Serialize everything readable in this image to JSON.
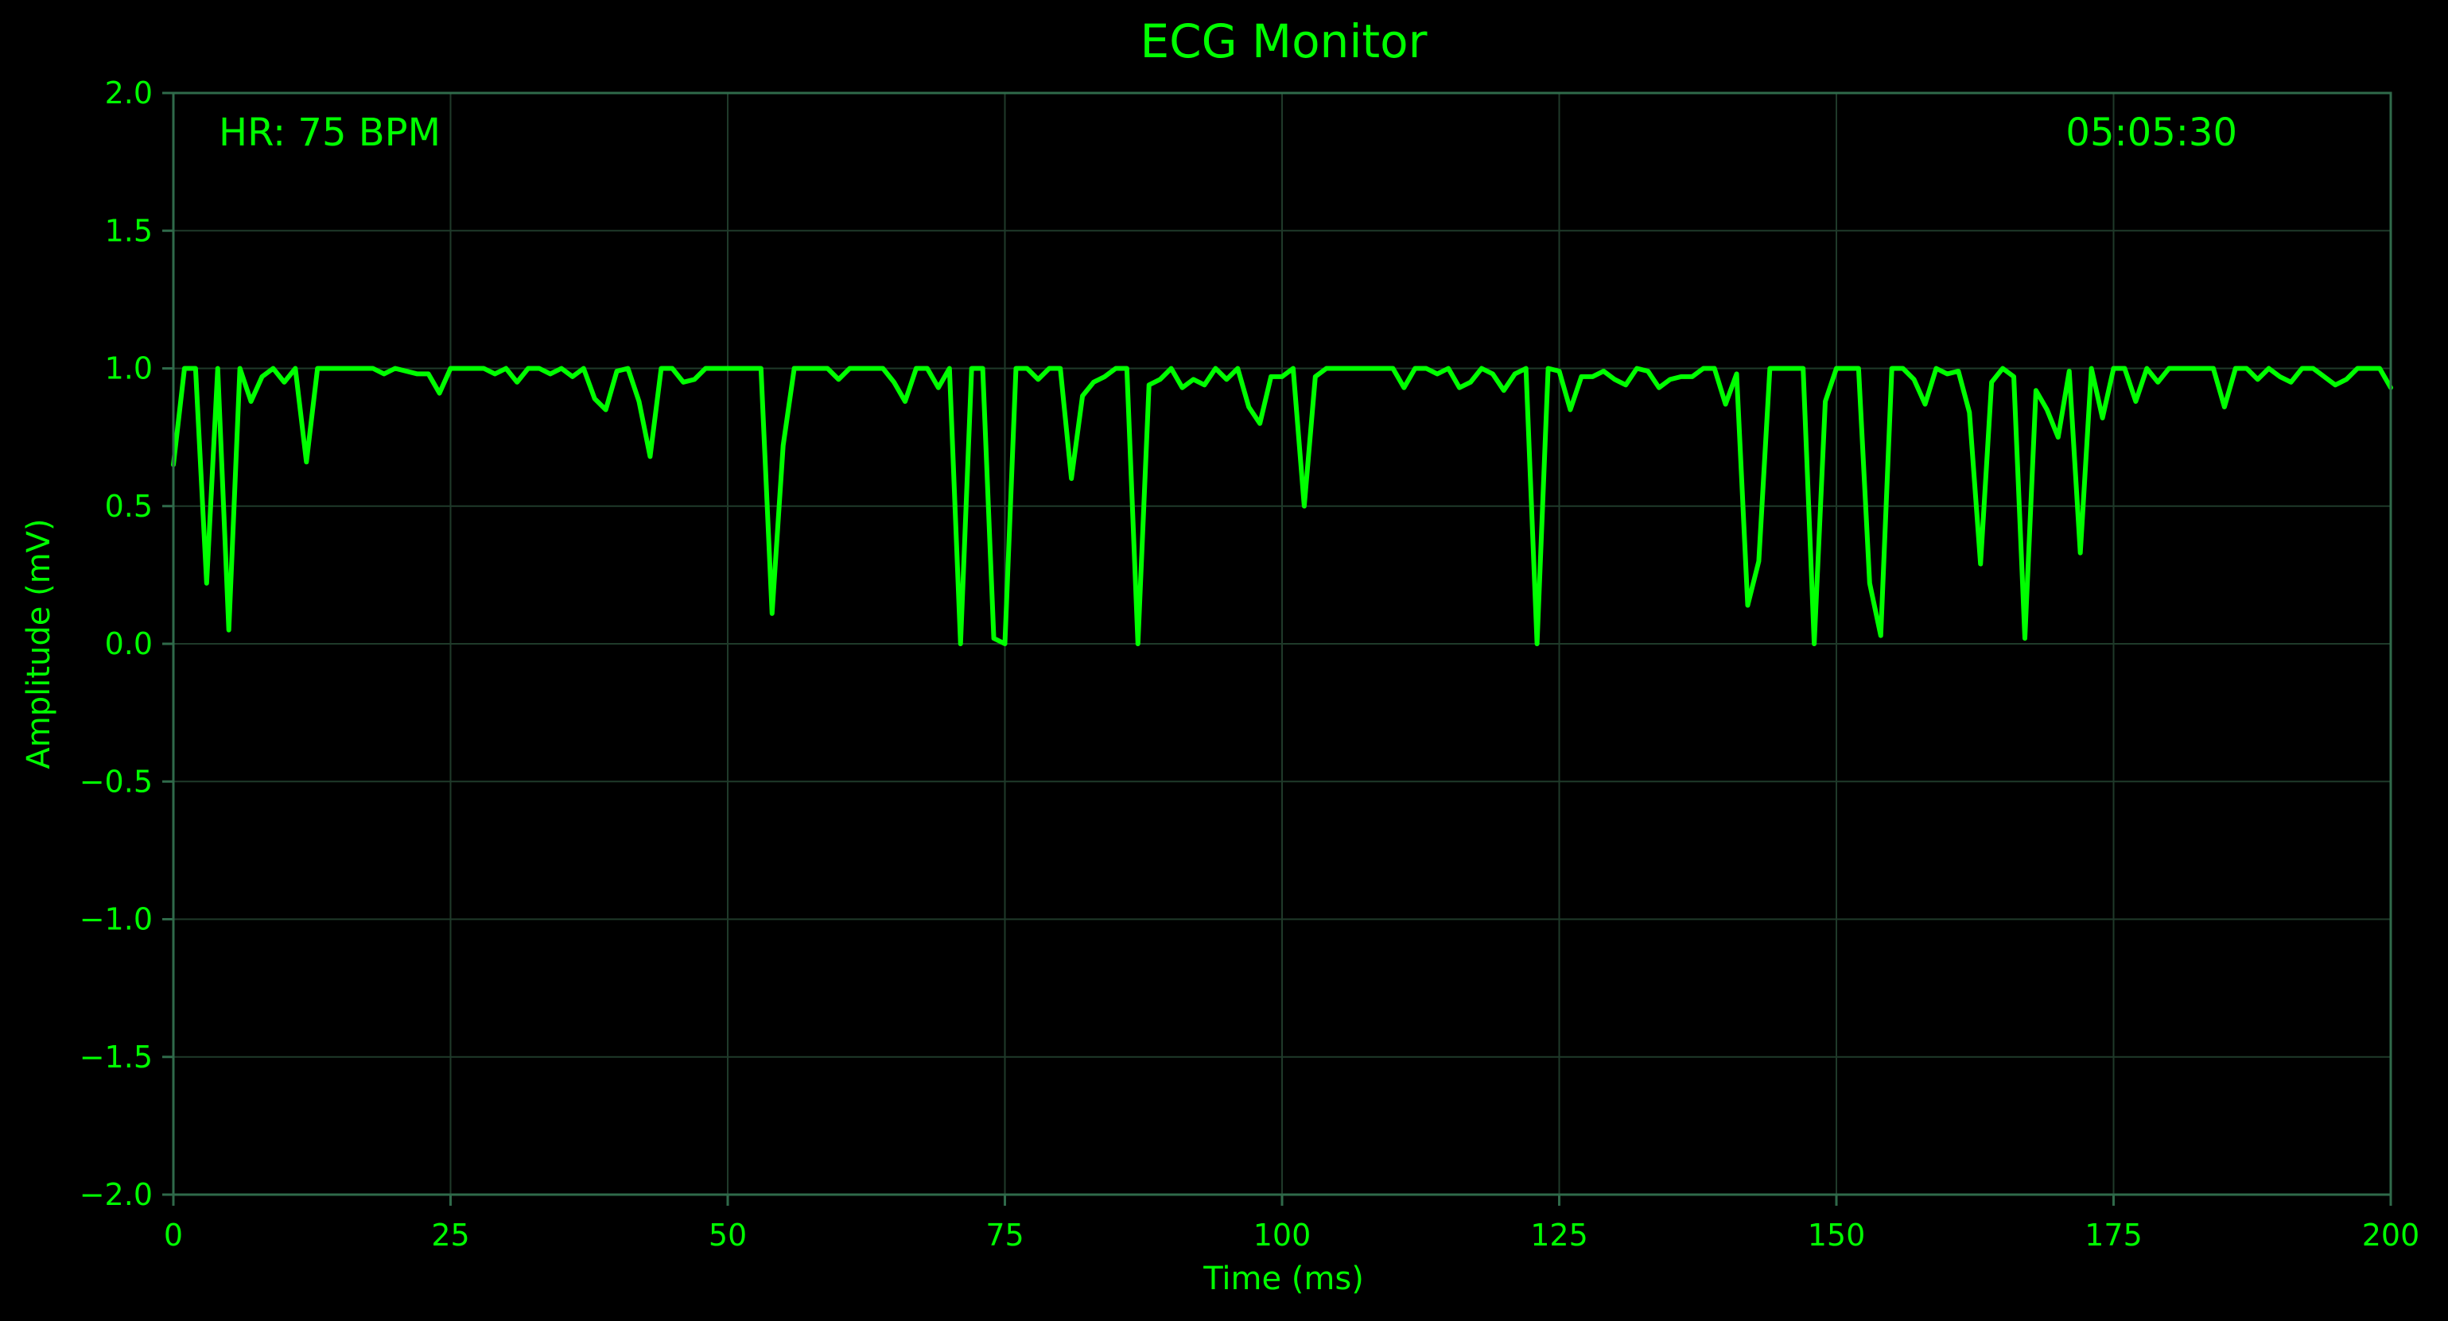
{
  "chart_data": {
    "type": "line",
    "title": "ECG Monitor",
    "xlabel": "Time (ms)",
    "ylabel": "Amplitude (mV)",
    "xlim": [
      0,
      200
    ],
    "ylim": [
      -2.0,
      2.0
    ],
    "xticks": [
      0,
      25,
      50,
      75,
      100,
      125,
      150,
      175,
      200
    ],
    "xtick_labels": [
      "0",
      "25",
      "50",
      "75",
      "100",
      "125",
      "150",
      "175",
      "200"
    ],
    "yticks": [
      2.0,
      1.5,
      1.0,
      0.5,
      0.0,
      -0.5,
      -1.0,
      -1.5,
      -2.0
    ],
    "ytick_labels": [
      "2.0",
      "1.5",
      "1.0",
      "0.5",
      "0.0",
      "−0.5",
      "−1.0",
      "−1.5",
      "−2.0"
    ],
    "grid": true,
    "annotations": {
      "heart_rate": "HR: 75 BPM",
      "clock": "05:05:30"
    },
    "series": [
      {
        "x": [
          0,
          1,
          2,
          3,
          4,
          5,
          6,
          7,
          8,
          9,
          10,
          11,
          12,
          13,
          14,
          15,
          16,
          17,
          18,
          19,
          20,
          21,
          22,
          23,
          24,
          25,
          26,
          27,
          28,
          29,
          30,
          31,
          32,
          33,
          34,
          35,
          36,
          37,
          38,
          39,
          40,
          41,
          42,
          43,
          44,
          45,
          46,
          47,
          48,
          49,
          50,
          51,
          52,
          53,
          54,
          55,
          56,
          57,
          58,
          59,
          60,
          61,
          62,
          63,
          64,
          65,
          66,
          67,
          68,
          69,
          70,
          71,
          72,
          73,
          74,
          75,
          76,
          77,
          78,
          79,
          80,
          81,
          82,
          83,
          84,
          85,
          86,
          87,
          88,
          89,
          90,
          91,
          92,
          93,
          94,
          95,
          96,
          97,
          98,
          99,
          100,
          101,
          102,
          103,
          104,
          105,
          106,
          107,
          108,
          109,
          110,
          111,
          112,
          113,
          114,
          115,
          116,
          117,
          118,
          119,
          120,
          121,
          122,
          123,
          124,
          125,
          126,
          127,
          128,
          129,
          130,
          131,
          132,
          133,
          134,
          135,
          136,
          137,
          138,
          139,
          140,
          141,
          142,
          143,
          144,
          145,
          146,
          147,
          148,
          149,
          150,
          151,
          152,
          153,
          154,
          155,
          156,
          157,
          158,
          159,
          160,
          161,
          162,
          163,
          164,
          165,
          166,
          167,
          168,
          169,
          170,
          171,
          172,
          173,
          174,
          175,
          176,
          177,
          178,
          179,
          180,
          181,
          182,
          183,
          184,
          185,
          186,
          187,
          188,
          189,
          190,
          191,
          192,
          193,
          194,
          195,
          196,
          197,
          198,
          199,
          200
        ],
        "values": [
          0.65,
          1.0,
          1.0,
          0.22,
          1.0,
          0.05,
          1.0,
          0.88,
          0.97,
          1.0,
          0.95,
          1.0,
          0.66,
          1.0,
          1.0,
          1.0,
          1.0,
          1.0,
          1.0,
          0.98,
          1.0,
          0.99,
          0.98,
          0.98,
          0.91,
          1.0,
          1.0,
          1.0,
          1.0,
          0.98,
          1.0,
          0.95,
          1.0,
          1.0,
          0.98,
          1.0,
          0.97,
          1.0,
          0.89,
          0.85,
          0.99,
          1.0,
          0.88,
          0.68,
          1.0,
          1.0,
          0.95,
          0.96,
          1.0,
          1.0,
          1.0,
          1.0,
          1.0,
          1.0,
          0.11,
          0.72,
          1.0,
          1.0,
          1.0,
          1.0,
          0.96,
          1.0,
          1.0,
          1.0,
          1.0,
          0.95,
          0.88,
          1.0,
          1.0,
          0.93,
          1.0,
          0.0,
          1.0,
          1.0,
          0.02,
          0.0,
          1.0,
          1.0,
          0.96,
          1.0,
          1.0,
          0.6,
          0.9,
          0.95,
          0.97,
          1.0,
          1.0,
          0.0,
          0.94,
          0.96,
          1.0,
          0.93,
          0.96,
          0.94,
          1.0,
          0.96,
          1.0,
          0.86,
          0.8,
          0.97,
          0.97,
          1.0,
          0.5,
          0.97,
          1.0,
          1.0,
          1.0,
          1.0,
          1.0,
          1.0,
          1.0,
          0.93,
          1.0,
          1.0,
          0.98,
          1.0,
          0.93,
          0.95,
          1.0,
          0.98,
          0.92,
          0.98,
          1.0,
          0.0,
          1.0,
          0.99,
          0.85,
          0.97,
          0.97,
          0.99,
          0.96,
          0.94,
          1.0,
          0.99,
          0.93,
          0.96,
          0.97,
          0.97,
          1.0,
          1.0,
          0.87,
          0.98,
          0.14,
          0.3,
          1.0,
          1.0,
          1.0,
          1.0,
          0.0,
          0.88,
          1.0,
          1.0,
          1.0,
          0.22,
          0.03,
          1.0,
          1.0,
          0.96,
          0.87,
          1.0,
          0.98,
          0.99,
          0.84,
          0.29,
          0.95,
          1.0,
          0.97,
          0.02,
          0.92,
          0.85,
          0.75,
          0.99,
          0.33,
          1.0,
          0.82,
          1.0,
          1.0,
          0.88,
          1.0,
          0.95,
          1.0,
          1.0,
          1.0,
          1.0,
          1.0,
          0.86,
          1.0,
          1.0,
          0.96,
          1.0,
          0.97,
          0.95,
          1.0,
          1.0,
          0.97,
          0.94,
          0.96,
          1.0,
          1.0,
          1.0,
          0.93
        ],
        "color": "#00ff00"
      }
    ],
    "colors": {
      "background": "#000000",
      "trace": "#00ff00",
      "text": "#00ff00",
      "grid": "#1f3a2a",
      "spine": "#2f6a4a"
    }
  }
}
